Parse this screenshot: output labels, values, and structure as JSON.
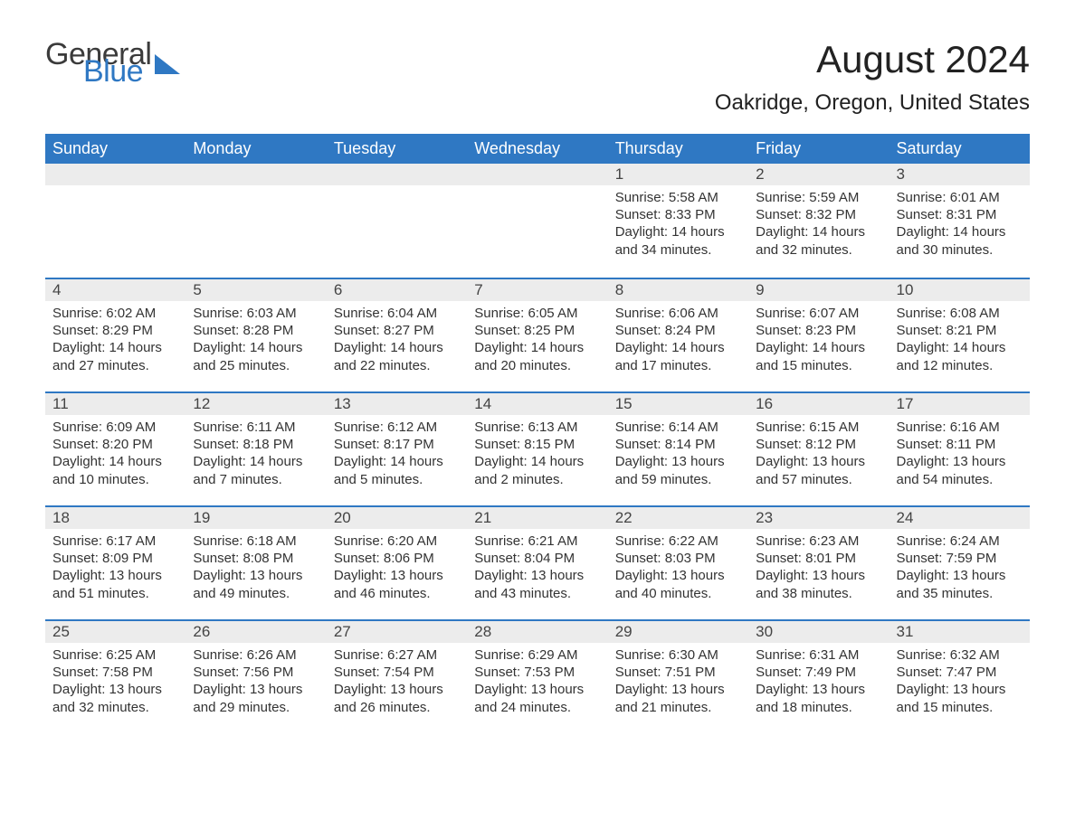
{
  "brand": {
    "word1": "General",
    "word2": "Blue",
    "triangle_color": "#2f78c3"
  },
  "header": {
    "title": "August 2024",
    "subtitle": "Oakridge, Oregon, United States"
  },
  "calendar": {
    "type": "table",
    "background_color": "#ffffff",
    "header_bg": "#2f78c3",
    "header_text_color": "#ffffff",
    "row_divider_color": "#2f78c3",
    "daynum_bg": "#ececec",
    "text_color": "#333333",
    "title_fontsize": 42,
    "subtitle_fontsize": 24,
    "header_fontsize": 18,
    "body_fontsize": 15,
    "columns": [
      "Sunday",
      "Monday",
      "Tuesday",
      "Wednesday",
      "Thursday",
      "Friday",
      "Saturday"
    ],
    "leading_blanks": 4,
    "days": [
      {
        "n": 1,
        "sunrise": "5:58 AM",
        "sunset": "8:33 PM",
        "daylight": "14 hours and 34 minutes."
      },
      {
        "n": 2,
        "sunrise": "5:59 AM",
        "sunset": "8:32 PM",
        "daylight": "14 hours and 32 minutes."
      },
      {
        "n": 3,
        "sunrise": "6:01 AM",
        "sunset": "8:31 PM",
        "daylight": "14 hours and 30 minutes."
      },
      {
        "n": 4,
        "sunrise": "6:02 AM",
        "sunset": "8:29 PM",
        "daylight": "14 hours and 27 minutes."
      },
      {
        "n": 5,
        "sunrise": "6:03 AM",
        "sunset": "8:28 PM",
        "daylight": "14 hours and 25 minutes."
      },
      {
        "n": 6,
        "sunrise": "6:04 AM",
        "sunset": "8:27 PM",
        "daylight": "14 hours and 22 minutes."
      },
      {
        "n": 7,
        "sunrise": "6:05 AM",
        "sunset": "8:25 PM",
        "daylight": "14 hours and 20 minutes."
      },
      {
        "n": 8,
        "sunrise": "6:06 AM",
        "sunset": "8:24 PM",
        "daylight": "14 hours and 17 minutes."
      },
      {
        "n": 9,
        "sunrise": "6:07 AM",
        "sunset": "8:23 PM",
        "daylight": "14 hours and 15 minutes."
      },
      {
        "n": 10,
        "sunrise": "6:08 AM",
        "sunset": "8:21 PM",
        "daylight": "14 hours and 12 minutes."
      },
      {
        "n": 11,
        "sunrise": "6:09 AM",
        "sunset": "8:20 PM",
        "daylight": "14 hours and 10 minutes."
      },
      {
        "n": 12,
        "sunrise": "6:11 AM",
        "sunset": "8:18 PM",
        "daylight": "14 hours and 7 minutes."
      },
      {
        "n": 13,
        "sunrise": "6:12 AM",
        "sunset": "8:17 PM",
        "daylight": "14 hours and 5 minutes."
      },
      {
        "n": 14,
        "sunrise": "6:13 AM",
        "sunset": "8:15 PM",
        "daylight": "14 hours and 2 minutes."
      },
      {
        "n": 15,
        "sunrise": "6:14 AM",
        "sunset": "8:14 PM",
        "daylight": "13 hours and 59 minutes."
      },
      {
        "n": 16,
        "sunrise": "6:15 AM",
        "sunset": "8:12 PM",
        "daylight": "13 hours and 57 minutes."
      },
      {
        "n": 17,
        "sunrise": "6:16 AM",
        "sunset": "8:11 PM",
        "daylight": "13 hours and 54 minutes."
      },
      {
        "n": 18,
        "sunrise": "6:17 AM",
        "sunset": "8:09 PM",
        "daylight": "13 hours and 51 minutes."
      },
      {
        "n": 19,
        "sunrise": "6:18 AM",
        "sunset": "8:08 PM",
        "daylight": "13 hours and 49 minutes."
      },
      {
        "n": 20,
        "sunrise": "6:20 AM",
        "sunset": "8:06 PM",
        "daylight": "13 hours and 46 minutes."
      },
      {
        "n": 21,
        "sunrise": "6:21 AM",
        "sunset": "8:04 PM",
        "daylight": "13 hours and 43 minutes."
      },
      {
        "n": 22,
        "sunrise": "6:22 AM",
        "sunset": "8:03 PM",
        "daylight": "13 hours and 40 minutes."
      },
      {
        "n": 23,
        "sunrise": "6:23 AM",
        "sunset": "8:01 PM",
        "daylight": "13 hours and 38 minutes."
      },
      {
        "n": 24,
        "sunrise": "6:24 AM",
        "sunset": "7:59 PM",
        "daylight": "13 hours and 35 minutes."
      },
      {
        "n": 25,
        "sunrise": "6:25 AM",
        "sunset": "7:58 PM",
        "daylight": "13 hours and 32 minutes."
      },
      {
        "n": 26,
        "sunrise": "6:26 AM",
        "sunset": "7:56 PM",
        "daylight": "13 hours and 29 minutes."
      },
      {
        "n": 27,
        "sunrise": "6:27 AM",
        "sunset": "7:54 PM",
        "daylight": "13 hours and 26 minutes."
      },
      {
        "n": 28,
        "sunrise": "6:29 AM",
        "sunset": "7:53 PM",
        "daylight": "13 hours and 24 minutes."
      },
      {
        "n": 29,
        "sunrise": "6:30 AM",
        "sunset": "7:51 PM",
        "daylight": "13 hours and 21 minutes."
      },
      {
        "n": 30,
        "sunrise": "6:31 AM",
        "sunset": "7:49 PM",
        "daylight": "13 hours and 18 minutes."
      },
      {
        "n": 31,
        "sunrise": "6:32 AM",
        "sunset": "7:47 PM",
        "daylight": "13 hours and 15 minutes."
      }
    ],
    "labels": {
      "sunrise": "Sunrise: ",
      "sunset": "Sunset: ",
      "daylight": "Daylight: "
    }
  }
}
